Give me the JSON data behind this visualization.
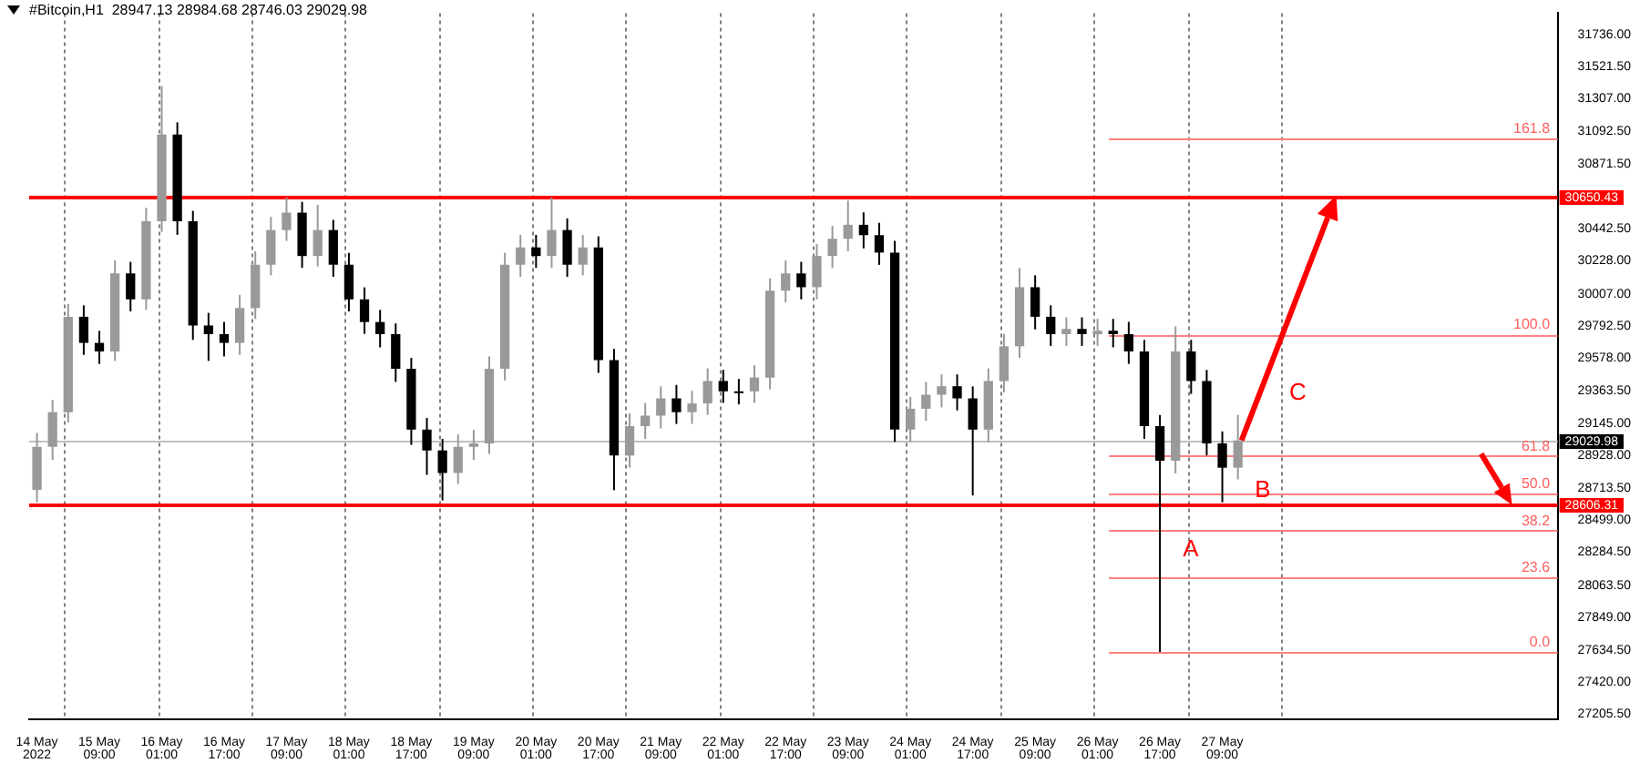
{
  "chart_data": {
    "type": "candlestick",
    "title": "#Bitcoin,H1  28947.13 28984.68 28746.03 29029.98",
    "x": [
      "2022-05-14T17:00",
      "2022-05-14T21:00",
      "2022-05-15T01:00",
      "2022-05-15T05:00",
      "2022-05-15T09:00",
      "2022-05-15T13:00",
      "2022-05-15T17:00",
      "2022-05-15T21:00",
      "2022-05-16T01:00",
      "2022-05-16T05:00",
      "2022-05-16T09:00",
      "2022-05-16T13:00",
      "2022-05-16T17:00",
      "2022-05-16T21:00",
      "2022-05-17T01:00",
      "2022-05-17T05:00",
      "2022-05-17T09:00",
      "2022-05-17T13:00",
      "2022-05-17T17:00",
      "2022-05-17T21:00",
      "2022-05-18T01:00",
      "2022-05-18T05:00",
      "2022-05-18T09:00",
      "2022-05-18T13:00",
      "2022-05-18T17:00",
      "2022-05-18T21:00",
      "2022-05-19T01:00",
      "2022-05-19T05:00",
      "2022-05-19T09:00",
      "2022-05-19T13:00",
      "2022-05-19T17:00",
      "2022-05-19T21:00",
      "2022-05-20T01:00",
      "2022-05-20T05:00",
      "2022-05-20T09:00",
      "2022-05-20T13:00",
      "2022-05-20T17:00",
      "2022-05-20T21:00",
      "2022-05-21T01:00",
      "2022-05-21T05:00",
      "2022-05-21T09:00",
      "2022-05-21T13:00",
      "2022-05-21T17:00",
      "2022-05-21T21:00",
      "2022-05-22T01:00",
      "2022-05-22T05:00",
      "2022-05-22T09:00",
      "2022-05-22T13:00",
      "2022-05-22T17:00",
      "2022-05-22T21:00",
      "2022-05-23T01:00",
      "2022-05-23T05:00",
      "2022-05-23T09:00",
      "2022-05-23T13:00",
      "2022-05-23T17:00",
      "2022-05-23T21:00",
      "2022-05-24T01:00",
      "2022-05-24T05:00",
      "2022-05-24T09:00",
      "2022-05-24T13:00",
      "2022-05-24T17:00",
      "2022-05-24T21:00",
      "2022-05-25T01:00",
      "2022-05-25T05:00",
      "2022-05-25T09:00",
      "2022-05-25T13:00",
      "2022-05-25T17:00",
      "2022-05-25T21:00",
      "2022-05-26T01:00",
      "2022-05-26T05:00",
      "2022-05-26T09:00",
      "2022-05-26T13:00",
      "2022-05-26T17:00",
      "2022-05-26T21:00",
      "2022-05-27T01:00",
      "2022-05-27T05:00",
      "2022-05-27T09:00",
      "2022-05-27T13:00"
    ],
    "ohlc": [
      [
        28700,
        29080,
        28617,
        28987
      ],
      [
        28987,
        29300,
        28900,
        29218
      ],
      [
        29218,
        29940,
        29150,
        29854
      ],
      [
        29854,
        29930,
        29600,
        29680
      ],
      [
        29680,
        29760,
        29540,
        29623
      ],
      [
        29623,
        30230,
        29560,
        30143
      ],
      [
        30143,
        30220,
        29890,
        29970
      ],
      [
        29970,
        30580,
        29900,
        30490
      ],
      [
        30490,
        31392,
        30420,
        31068
      ],
      [
        31068,
        31150,
        30400,
        30490
      ],
      [
        30490,
        30560,
        29700,
        29796
      ],
      [
        29796,
        29880,
        29560,
        29738
      ],
      [
        29738,
        29820,
        29590,
        29680
      ],
      [
        29680,
        30000,
        29600,
        29912
      ],
      [
        29912,
        30290,
        29840,
        30201
      ],
      [
        30201,
        30520,
        30130,
        30432
      ],
      [
        30432,
        30650,
        30360,
        30548
      ],
      [
        30548,
        30620,
        30180,
        30259
      ],
      [
        30259,
        30600,
        30190,
        30432
      ],
      [
        30432,
        30500,
        30120,
        30201
      ],
      [
        30201,
        30280,
        29890,
        29970
      ],
      [
        29970,
        30050,
        29740,
        29819
      ],
      [
        29819,
        29900,
        29650,
        29738
      ],
      [
        29738,
        29810,
        29420,
        29507
      ],
      [
        29507,
        29580,
        29000,
        29102
      ],
      [
        29102,
        29180,
        28800,
        28963
      ],
      [
        28963,
        29040,
        28630,
        28813
      ],
      [
        28813,
        29070,
        28740,
        28987
      ],
      [
        28987,
        29100,
        28900,
        29010
      ],
      [
        29010,
        29590,
        28940,
        29507
      ],
      [
        29507,
        30280,
        29430,
        30201
      ],
      [
        30201,
        30400,
        30120,
        30316
      ],
      [
        30316,
        30400,
        30180,
        30259
      ],
      [
        30259,
        30650,
        30180,
        30432
      ],
      [
        30432,
        30510,
        30120,
        30201
      ],
      [
        30201,
        30400,
        30130,
        30316
      ],
      [
        30316,
        30390,
        29480,
        29565
      ],
      [
        29565,
        29640,
        28698,
        28929
      ],
      [
        28929,
        29210,
        28850,
        29125
      ],
      [
        29125,
        29280,
        29040,
        29195
      ],
      [
        29195,
        29390,
        29110,
        29310
      ],
      [
        29310,
        29400,
        29140,
        29218
      ],
      [
        29218,
        29360,
        29140,
        29276
      ],
      [
        29276,
        29510,
        29200,
        29426
      ],
      [
        29426,
        29500,
        29280,
        29357
      ],
      [
        29357,
        29440,
        29270,
        29357
      ],
      [
        29357,
        29530,
        29280,
        29449
      ],
      [
        29449,
        30110,
        29370,
        30028
      ],
      [
        30028,
        30230,
        29950,
        30143
      ],
      [
        30143,
        30220,
        29970,
        30051
      ],
      [
        30051,
        30340,
        29970,
        30259
      ],
      [
        30259,
        30460,
        30180,
        30374
      ],
      [
        30374,
        30629,
        30290,
        30467
      ],
      [
        30467,
        30550,
        30310,
        30398
      ],
      [
        30398,
        30480,
        30200,
        30282
      ],
      [
        30282,
        30360,
        29020,
        29102
      ],
      [
        29102,
        29320,
        29020,
        29241
      ],
      [
        29241,
        29420,
        29160,
        29334
      ],
      [
        29334,
        29470,
        29250,
        29391
      ],
      [
        29391,
        29470,
        29230,
        29310
      ],
      [
        29310,
        29390,
        28663,
        29102
      ],
      [
        29102,
        29510,
        29020,
        29426
      ],
      [
        29426,
        29740,
        29350,
        29657
      ],
      [
        29657,
        30178,
        29580,
        30051
      ],
      [
        30051,
        30130,
        29770,
        29854
      ],
      [
        29854,
        29930,
        29660,
        29738
      ],
      [
        29738,
        29850,
        29660,
        29773
      ],
      [
        29773,
        29850,
        29660,
        29738
      ],
      [
        29738,
        29840,
        29660,
        29761
      ],
      [
        29761,
        29840,
        29650,
        29738
      ],
      [
        29738,
        29820,
        29540,
        29623
      ],
      [
        29623,
        29700,
        29040,
        29125
      ],
      [
        29125,
        29200,
        27620,
        28894
      ],
      [
        28894,
        29790,
        28810,
        29623
      ],
      [
        29623,
        29700,
        29340,
        29426
      ],
      [
        29426,
        29500,
        28930,
        29010
      ],
      [
        29010,
        29090,
        28617,
        28848
      ],
      [
        28848,
        29200,
        28770,
        29030
      ]
    ],
    "colors": [
      "#999999",
      "#999999",
      "#999999",
      "#000000",
      "#000000",
      "#999999",
      "#000000",
      "#999999",
      "#999999",
      "#000000",
      "#000000",
      "#000000",
      "#000000",
      "#999999",
      "#999999",
      "#999999",
      "#999999",
      "#000000",
      "#999999",
      "#000000",
      "#000000",
      "#000000",
      "#000000",
      "#000000",
      "#000000",
      "#000000",
      "#000000",
      "#999999",
      "#999999",
      "#999999",
      "#999999",
      "#999999",
      "#000000",
      "#999999",
      "#000000",
      "#999999",
      "#000000",
      "#000000",
      "#999999",
      "#999999",
      "#999999",
      "#000000",
      "#999999",
      "#999999",
      "#000000",
      "#000000",
      "#999999",
      "#999999",
      "#999999",
      "#000000",
      "#999999",
      "#999999",
      "#999999",
      "#000000",
      "#000000",
      "#000000",
      "#999999",
      "#999999",
      "#999999",
      "#000000",
      "#000000",
      "#999999",
      "#999999",
      "#999999",
      "#000000",
      "#000000",
      "#999999",
      "#000000",
      "#999999",
      "#000000",
      "#000000",
      "#000000",
      "#000000",
      "#999999",
      "#000000",
      "#000000",
      "#000000",
      "#999999"
    ],
    "xlim": [
      "2022-05-14T15:00",
      "2022-05-30T23:00"
    ],
    "xticks": [
      {
        "value": "2022-05-14T17:00",
        "label": "14 May 2022"
      },
      {
        "value": "2022-05-15T09:00",
        "label": "15 May 09:00"
      },
      {
        "value": "2022-05-16T01:00",
        "label": "16 May 01:00"
      },
      {
        "value": "2022-05-16T17:00",
        "label": "16 May 17:00"
      },
      {
        "value": "2022-05-17T09:00",
        "label": "17 May 09:00"
      },
      {
        "value": "2022-05-18T01:00",
        "label": "18 May 01:00"
      },
      {
        "value": "2022-05-18T17:00",
        "label": "18 May 17:00"
      },
      {
        "value": "2022-05-19T09:00",
        "label": "19 May 09:00"
      },
      {
        "value": "2022-05-20T01:00",
        "label": "20 May 01:00"
      },
      {
        "value": "2022-05-20T17:00",
        "label": "20 May 17:00"
      },
      {
        "value": "2022-05-21T09:00",
        "label": "21 May 09:00"
      },
      {
        "value": "2022-05-22T01:00",
        "label": "22 May 01:00"
      },
      {
        "value": "2022-05-22T17:00",
        "label": "22 May 17:00"
      },
      {
        "value": "2022-05-23T09:00",
        "label": "23 May 09:00"
      },
      {
        "value": "2022-05-24T01:00",
        "label": "24 May 01:00"
      },
      {
        "value": "2022-05-24T17:00",
        "label": "24 May 17:00"
      },
      {
        "value": "2022-05-25T09:00",
        "label": "25 May 09:00"
      },
      {
        "value": "2022-05-26T01:00",
        "label": "26 May 01:00"
      },
      {
        "value": "2022-05-26T17:00",
        "label": "26 May 17:00"
      },
      {
        "value": "2022-05-27T09:00",
        "label": "27 May 09:00"
      },
      {
        "value": "2022-05-15T00:00",
        "label": null
      },
      {
        "value": "2022-05-16T00:00",
        "label": null
      },
      {
        "value": "2022-05-17T00:00",
        "label": null
      },
      {
        "value": "2022-05-18T00:00",
        "label": null
      },
      {
        "value": "2022-05-19T00:00",
        "label": null
      },
      {
        "value": "2022-05-20T00:00",
        "label": null
      },
      {
        "value": "2022-05-21T00:00",
        "label": null
      },
      {
        "value": "2022-05-22T00:00",
        "label": null
      },
      {
        "value": "2022-05-23T00:00",
        "label": null
      },
      {
        "value": "2022-05-24T00:00",
        "label": null
      },
      {
        "value": "2022-05-25T00:00",
        "label": null
      },
      {
        "value": "2022-05-26T00:00",
        "label": null
      },
      {
        "value": "2022-05-27T00:00",
        "label": null
      },
      {
        "value": "2022-05-28T00:00",
        "label": null
      }
    ],
    "ylim": [
      27171,
      31878
    ],
    "yticks": [
      {
        "value": 31736,
        "label": "31736.00"
      },
      {
        "value": 31521.5,
        "label": "31521.50"
      },
      {
        "value": 31307,
        "label": "31307.00"
      },
      {
        "value": 31092.5,
        "label": "31092.50"
      },
      {
        "value": 30871.5,
        "label": "30871.50"
      },
      {
        "value": 30442.5,
        "label": "30442.50"
      },
      {
        "value": 30228,
        "label": "30228.00"
      },
      {
        "value": 30007,
        "label": "30007.00"
      },
      {
        "value": 29792.5,
        "label": "29792.50"
      },
      {
        "value": 29578,
        "label": "29578.00"
      },
      {
        "value": 29363.5,
        "label": "29363.50"
      },
      {
        "value": 29145,
        "label": "29145.00"
      },
      {
        "value": 28928,
        "label": "28928.00"
      },
      {
        "value": 28713.5,
        "label": "28713.50"
      },
      {
        "value": 28499,
        "label": "28499.00"
      },
      {
        "value": 28284.5,
        "label": "28284.50"
      },
      {
        "value": 28063.5,
        "label": "28063.50"
      },
      {
        "value": 27849,
        "label": "27849.00"
      },
      {
        "value": 27634.5,
        "label": "27634.50"
      },
      {
        "value": 27420,
        "label": "27420.00"
      },
      {
        "value": 27205.5,
        "label": "27205.50"
      }
    ],
    "grid": "x",
    "ref_lines": [
      {
        "axis": "y",
        "value": 30650.43,
        "label": "30650.43",
        "color": "#ff0000"
      },
      {
        "axis": "y",
        "value": 28606.31,
        "label": "28606.31",
        "color": "#ff0000"
      },
      {
        "axis": "y",
        "value": 29029.98,
        "label": "29029.98",
        "color": "#c0c0c0"
      },
      {
        "axis": "y",
        "value": 31047,
        "color": "#ff8080",
        "line_style": "solid"
      },
      {
        "axis": "y",
        "value": 29738,
        "color": "#ff8080",
        "line_style": "solid"
      },
      {
        "axis": "y",
        "value": 28929,
        "color": "#ff8080",
        "line_style": "solid"
      },
      {
        "axis": "y",
        "value": 28679,
        "color": "#ff8080",
        "line_style": "solid"
      },
      {
        "axis": "y",
        "value": 28429,
        "color": "#ff8080",
        "line_style": "solid"
      },
      {
        "axis": "y",
        "value": 28120,
        "color": "#ff8080",
        "line_style": "solid"
      },
      {
        "axis": "y",
        "value": 27620,
        "color": "#ff8080",
        "line_style": "solid"
      }
    ],
    "annotations": [
      "A",
      "B",
      "C",
      {
        "text": "161.8",
        "x": "2022-05-30T21:00",
        "y": 31047
      },
      {
        "text": "100.0",
        "x": "2022-05-30T21:00",
        "y": 29738
      },
      {
        "text": "61.8",
        "x": "2022-05-30T21:00",
        "y": 28929
      },
      {
        "text": "50.0",
        "x": "2022-05-30T21:00",
        "y": 28679
      },
      {
        "text": "38.2",
        "x": "2022-05-30T21:00",
        "y": 28429
      },
      {
        "text": "23.6",
        "x": "2022-05-30T21:00",
        "y": 28120
      },
      {
        "text": "0.0",
        "x": "2022-05-30T21:00",
        "y": 27620
      }
    ]
  }
}
